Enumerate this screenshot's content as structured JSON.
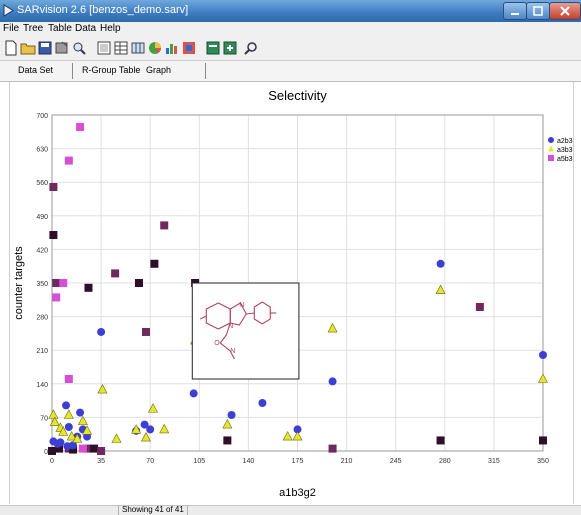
{
  "window": {
    "title": "SARvision 2.6  [benzos_demo.sarv]"
  },
  "menu": {
    "items": [
      "File",
      "Tree",
      "Table",
      "Data",
      "Help"
    ]
  },
  "toolbar": {
    "buttons": [
      "new-file-icon",
      "open-folder-icon",
      "save-icon",
      "export-icon",
      "search-icon",
      "view-icon",
      "table-icon",
      "grid-icon",
      "pie-chart-icon",
      "bar-chart-icon",
      "scatter-icon",
      "report-icon",
      "table-export-icon",
      "find-icon"
    ]
  },
  "tabs": [
    {
      "label": "Data Set"
    },
    {
      "label": "R-Group Table"
    },
    {
      "label": "Graph"
    }
  ],
  "status": {
    "text": "Showing 41 of 41"
  },
  "colors": {
    "series1": "#3c3fd2",
    "series2": "#e6e62a",
    "series3": "#d64fd6",
    "dark1": "#2e0f2a",
    "dark2": "#6e2a5e",
    "structure": "#b0455e"
  },
  "chart_data": {
    "type": "scatter",
    "title": "Selectivity",
    "xlabel": "a1b3g2",
    "ylabel": "counter targets",
    "xlim": [
      0,
      350
    ],
    "ylim": [
      0,
      700
    ],
    "xticks": [
      0,
      35,
      70,
      105,
      140,
      175,
      210,
      245,
      280,
      315,
      350
    ],
    "yticks": [
      0,
      70,
      140,
      210,
      280,
      350,
      420,
      490,
      560,
      630,
      700
    ],
    "grid": true,
    "legend_position": "right",
    "series": [
      {
        "name": "a2b3g2",
        "marker": "circle",
        "points": [
          [
            1,
            20
          ],
          [
            4,
            15
          ],
          [
            6,
            18
          ],
          [
            10,
            95
          ],
          [
            11,
            10
          ],
          [
            12,
            50
          ],
          [
            15,
            12
          ],
          [
            18,
            30
          ],
          [
            20,
            80
          ],
          [
            22,
            45
          ],
          [
            25,
            30
          ],
          [
            35,
            248
          ],
          [
            70,
            45
          ],
          [
            105,
            248
          ],
          [
            128,
            75
          ],
          [
            150,
            100
          ],
          [
            175,
            45
          ],
          [
            200,
            145
          ],
          [
            277,
            390
          ],
          [
            350,
            200
          ],
          [
            66,
            55
          ],
          [
            60,
            42
          ],
          [
            101,
            120
          ]
        ]
      },
      {
        "name": "a3b3g2",
        "marker": "triangle",
        "points": [
          [
            1,
            75
          ],
          [
            2,
            60
          ],
          [
            6,
            48
          ],
          [
            8,
            40
          ],
          [
            12,
            75
          ],
          [
            14,
            30
          ],
          [
            18,
            25
          ],
          [
            22,
            62
          ],
          [
            25,
            42
          ],
          [
            36,
            128
          ],
          [
            46,
            25
          ],
          [
            60,
            44
          ],
          [
            67,
            28
          ],
          [
            72,
            88
          ],
          [
            80,
            45
          ],
          [
            102,
            230
          ],
          [
            125,
            55
          ],
          [
            168,
            30
          ],
          [
            175,
            30
          ],
          [
            200,
            255
          ],
          [
            277,
            335
          ],
          [
            350,
            150
          ]
        ]
      },
      {
        "name": "a5b3g2",
        "marker": "square",
        "points": [
          [
            3,
            320
          ],
          [
            8,
            350
          ],
          [
            12,
            605
          ],
          [
            12,
            150
          ],
          [
            20,
            675
          ],
          [
            22,
            5
          ]
        ],
        "dark_points": [
          [
            0,
            0
          ],
          [
            1,
            550
          ],
          [
            1,
            450
          ],
          [
            3,
            350
          ],
          [
            5,
            5
          ],
          [
            12,
            5
          ],
          [
            15,
            3
          ],
          [
            25,
            5
          ],
          [
            30,
            5
          ],
          [
            35,
            0
          ],
          [
            26,
            340
          ],
          [
            45,
            370
          ],
          [
            62,
            350
          ],
          [
            67,
            248
          ],
          [
            73,
            390
          ],
          [
            80,
            470
          ],
          [
            102,
            350
          ],
          [
            103,
            320
          ],
          [
            125,
            22
          ],
          [
            200,
            5
          ],
          [
            277,
            22
          ],
          [
            305,
            300
          ],
          [
            350,
            22
          ]
        ]
      }
    ]
  }
}
